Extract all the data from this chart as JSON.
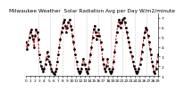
{
  "title": "Milwaukee Weather  Solar Radiation Avg per Day W/m2/minute",
  "values": [
    4.5,
    3.8,
    4.2,
    5.0,
    5.5,
    5.8,
    5.2,
    4.8,
    4.0,
    5.2,
    5.8,
    5.5,
    4.8,
    3.2,
    2.5,
    2.0,
    1.8,
    1.5,
    1.8,
    2.2,
    2.8,
    3.5,
    3.0,
    2.5,
    2.2,
    1.8,
    1.5,
    1.3,
    1.2,
    1.5,
    1.8,
    2.5,
    3.2,
    4.0,
    4.8,
    5.5,
    6.0,
    6.5,
    6.8,
    6.2,
    5.5,
    6.0,
    6.5,
    6.8,
    6.2,
    5.8,
    5.2,
    4.5,
    3.8,
    3.2,
    2.5,
    1.8,
    1.5,
    1.3,
    1.5,
    1.8,
    2.2,
    2.8,
    2.2,
    1.8,
    1.5,
    1.3,
    1.8,
    2.5,
    3.2,
    4.0,
    5.0,
    5.8,
    6.2,
    5.5,
    4.8,
    5.2,
    5.8,
    5.2,
    4.5,
    3.8,
    2.8,
    2.2,
    1.8,
    1.5,
    2.0,
    2.8,
    1.8,
    1.5,
    1.3,
    1.5,
    1.8,
    2.5,
    3.5,
    4.5,
    5.5,
    6.2,
    6.8,
    6.5,
    6.0,
    6.5,
    6.8,
    7.0,
    6.5,
    6.0,
    5.5,
    5.0,
    4.5,
    4.0,
    3.5,
    3.0,
    2.5,
    2.0,
    1.8,
    1.5,
    1.3,
    1.5,
    1.8,
    2.2,
    2.8,
    3.5,
    4.2,
    5.0,
    5.5,
    6.0,
    5.8,
    5.2,
    4.5,
    3.8,
    3.2,
    2.5,
    2.0,
    1.5,
    1.3,
    1.8,
    2.5,
    3.2
  ],
  "ylim": [
    1.0,
    7.5
  ],
  "yticks": [
    1,
    2,
    3,
    4,
    5,
    6,
    7
  ],
  "ytick_labels": [
    "1",
    "2",
    "3",
    "4",
    "5",
    "6",
    "7"
  ],
  "line_color": "#cc0000",
  "dot_color": "#000000",
  "grid_color": "#999999",
  "bg_color": "#ffffff",
  "title_fontsize": 4.2,
  "tick_fontsize": 3.2,
  "ylabel_fontsize": 3.2,
  "xtick_labels": [
    "b",
    "c",
    "1",
    "1",
    "5",
    "5",
    "1",
    "1",
    "5",
    "5",
    "f",
    "f",
    "7",
    "7",
    "5",
    "5",
    "f",
    "f",
    "7",
    "7",
    "5",
    "5",
    "7",
    "7",
    "f",
    "f",
    "t",
    "t",
    "k",
    "k"
  ],
  "num_gridlines": 11
}
